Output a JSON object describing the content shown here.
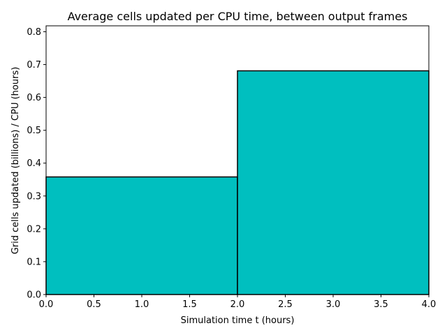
{
  "chart_data": {
    "type": "bar",
    "title": "Average cells updated per CPU time, between output frames",
    "xlabel": "Simulation time t (hours)",
    "ylabel": "Grid cells updated (billions) / CPU (hours)",
    "bars": [
      {
        "x_start": 0.0,
        "x_end": 2.0,
        "value": 0.358
      },
      {
        "x_start": 2.0,
        "x_end": 4.0,
        "value": 0.681
      }
    ],
    "xlim": [
      0.0,
      4.0
    ],
    "ylim": [
      0.0,
      0.818
    ],
    "x_ticks": [
      "0.0",
      "0.5",
      "1.0",
      "1.5",
      "2.0",
      "2.5",
      "3.0",
      "3.5",
      "4.0"
    ],
    "y_ticks": [
      "0.0",
      "0.1",
      "0.2",
      "0.3",
      "0.4",
      "0.5",
      "0.6",
      "0.7",
      "0.8"
    ],
    "bar_color": "#00bfbf",
    "edge_color": "#000000",
    "grid": false,
    "legend": false
  }
}
